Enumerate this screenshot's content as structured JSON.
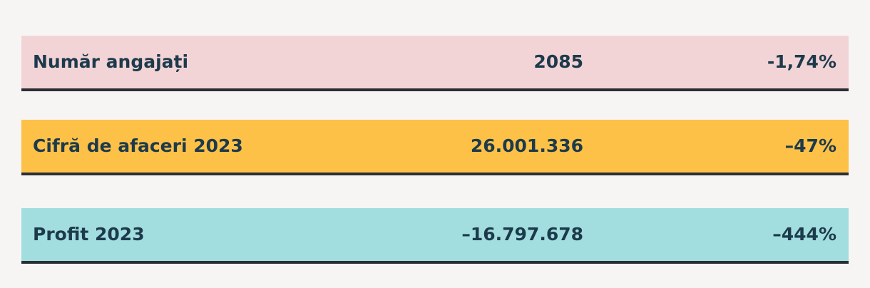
{
  "table": {
    "rows": [
      {
        "label": "Număr angajați",
        "value": "2085",
        "change": "-1,74%"
      },
      {
        "label": "Cifră de afaceri 2023",
        "value": "26.001.336",
        "change": "–47%"
      },
      {
        "label": "Profit 2023",
        "value": "–16.797.678",
        "change": "–444%"
      }
    ]
  }
}
